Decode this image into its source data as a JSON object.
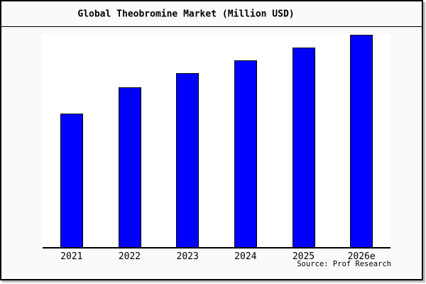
{
  "window": {
    "title": "Global Theobromine Market (Million USD)"
  },
  "chart_data": {
    "type": "bar",
    "title": "Global Theobromine Market (Million USD)",
    "categories": [
      "2021",
      "2022",
      "2023",
      "2024",
      "2025",
      "2026e"
    ],
    "values": [
      62.9,
      75.3,
      81.9,
      88.0,
      94.0,
      100.0
    ],
    "value_note": "relative units — no y-axis or value labels shown in chart; heights normalized so 2026e = 100",
    "xlabel": "",
    "ylabel": "",
    "ylim": [
      0,
      101
    ],
    "grid": false,
    "legend_position": "none",
    "bar_color": "#0000ff",
    "bar_border_color": "#000000",
    "plot_background": "#ffffff",
    "outer_background": "#fafafa"
  },
  "footer": {
    "source": "Source: Prof Research"
  },
  "colors": {
    "accent_bar": "#0000ff",
    "border": "#000000",
    "plot_bg": "#ffffff",
    "page_bg": "#fafafa"
  }
}
